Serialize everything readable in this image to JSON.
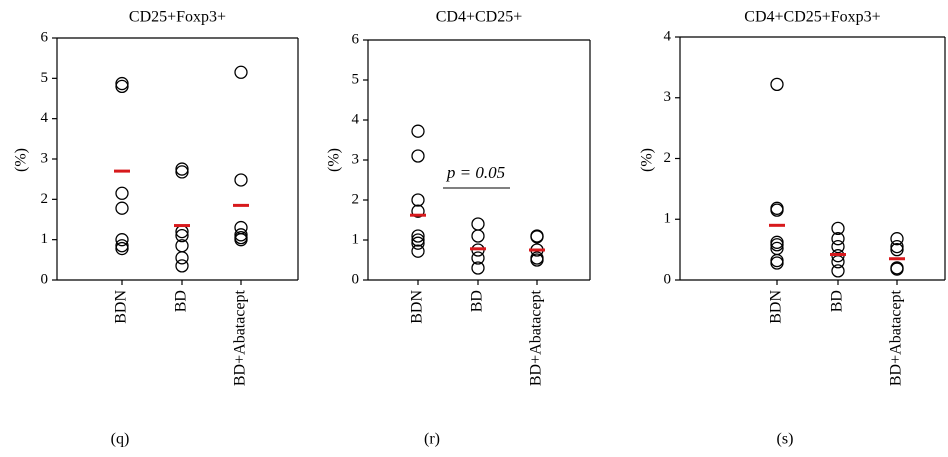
{
  "chart_data": [
    {
      "type": "strip",
      "title": "CD25+Foxp3+",
      "ylabel": "(%)",
      "caption": "(q)",
      "categories": [
        "BDN",
        "BD",
        "BD+Abatacept"
      ],
      "points": [
        [
          4.87,
          4.8,
          2.15,
          1.78,
          1.0,
          0.85,
          0.78
        ],
        [
          2.75,
          2.68,
          1.2,
          1.1,
          0.85,
          0.55,
          0.35
        ],
        [
          5.15,
          2.48,
          1.3,
          1.12,
          1.05,
          1.0
        ]
      ],
      "means": [
        2.7,
        1.35,
        1.85
      ],
      "ylim": [
        0,
        6
      ],
      "yticks": [
        0,
        1,
        2,
        3,
        4,
        5,
        6
      ],
      "point_color": "#000000",
      "mean_color": "#d7191c"
    },
    {
      "type": "strip",
      "title": "CD4+CD25+",
      "ylabel": "(%)",
      "caption": "(r)",
      "categories": [
        "BDN",
        "BD",
        "BD+Abatacept"
      ],
      "points": [
        [
          3.72,
          3.1,
          2.0,
          1.72,
          1.1,
          1.0,
          0.92,
          0.72
        ],
        [
          1.4,
          1.1,
          0.75,
          0.55,
          0.3
        ],
        [
          1.1,
          1.08,
          0.75,
          0.55,
          0.5
        ]
      ],
      "means": [
        1.62,
        0.78,
        0.75
      ],
      "ylim": [
        0,
        6
      ],
      "yticks": [
        0,
        1,
        2,
        3,
        4,
        5,
        6
      ],
      "annotation": "p = 0.05",
      "point_color": "#000000",
      "mean_color": "#d7191c"
    },
    {
      "type": "strip",
      "title": "CD4+CD25+Foxp3+",
      "ylabel": "(%)",
      "caption": "(s)",
      "categories": [
        "BDN",
        "BD",
        "BD+Abatacept"
      ],
      "points": [
        [
          3.22,
          1.18,
          1.15,
          0.62,
          0.58,
          0.52,
          0.32,
          0.28
        ],
        [
          0.85,
          0.68,
          0.55,
          0.4,
          0.3,
          0.15
        ],
        [
          0.68,
          0.55,
          0.5,
          0.2,
          0.18
        ]
      ],
      "means": [
        0.9,
        0.42,
        0.35
      ],
      "ylim": [
        0,
        4
      ],
      "yticks": [
        0,
        1,
        2,
        3,
        4
      ],
      "point_color": "#000000",
      "mean_color": "#d7191c"
    }
  ]
}
